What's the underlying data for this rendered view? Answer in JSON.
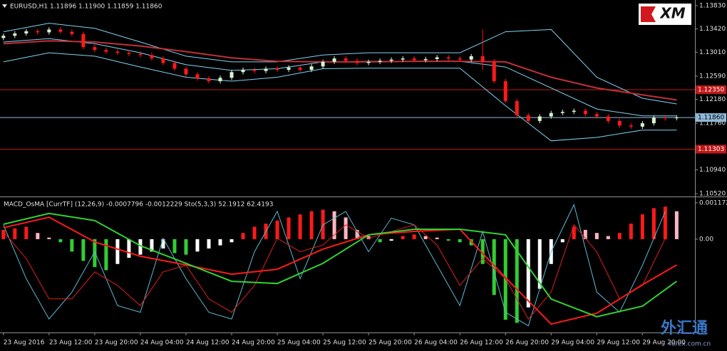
{
  "chart_data": [
    {
      "type": "candlestick",
      "title": "EURUSD,H1  1.11896 1.11900 1.11859 1.11860",
      "x": [
        0,
        2,
        4,
        6,
        8,
        10,
        12,
        14,
        16,
        18,
        20,
        22,
        24,
        26,
        28,
        30,
        32,
        34,
        36,
        38,
        40,
        42,
        44,
        46,
        48,
        50,
        52,
        54,
        56,
        58,
        60,
        62,
        64,
        66,
        68,
        70,
        72,
        74,
        76,
        78,
        80,
        82,
        84,
        86,
        88,
        90,
        92,
        94,
        96,
        98,
        100,
        102,
        104,
        106,
        108,
        110,
        112,
        114,
        116,
        118
      ],
      "open": [
        1.1326,
        1.133,
        1.1334,
        1.1338,
        1.1336,
        1.1341,
        1.1337,
        1.1333,
        1.131,
        1.1305,
        1.1302,
        1.13,
        1.1298,
        1.1296,
        1.129,
        1.1282,
        1.1272,
        1.1262,
        1.1255,
        1.125,
        1.1256,
        1.1266,
        1.127,
        1.1268,
        1.1272,
        1.127,
        1.1274,
        1.127,
        1.1276,
        1.1284,
        1.129,
        1.1286,
        1.1282,
        1.1284,
        1.1286,
        1.1288,
        1.129,
        1.1287,
        1.1289,
        1.1292,
        1.129,
        1.1288,
        1.1294,
        1.1285,
        1.125,
        1.1215,
        1.119,
        1.118,
        1.1188,
        1.1194,
        1.1196,
        1.1198,
        1.1192,
        1.1188,
        1.118,
        1.1172,
        1.117,
        1.1176,
        1.1186,
        1.1185
      ],
      "high": [
        1.1334,
        1.1338,
        1.1342,
        1.1342,
        1.1345,
        1.1345,
        1.1341,
        1.1337,
        1.1314,
        1.1309,
        1.1306,
        1.1304,
        1.1302,
        1.13,
        1.1294,
        1.1286,
        1.1276,
        1.1266,
        1.1259,
        1.126,
        1.127,
        1.1274,
        1.1274,
        1.1276,
        1.1276,
        1.1278,
        1.1278,
        1.128,
        1.1288,
        1.1294,
        1.1294,
        1.129,
        1.1288,
        1.129,
        1.1292,
        1.1294,
        1.1294,
        1.1293,
        1.1296,
        1.1296,
        1.1294,
        1.1298,
        1.1341,
        1.1289,
        1.1254,
        1.1219,
        1.1194,
        1.1192,
        1.1198,
        1.12,
        1.1202,
        1.1202,
        1.1196,
        1.1192,
        1.1184,
        1.1176,
        1.118,
        1.119,
        1.119,
        1.119
      ],
      "low": [
        1.1322,
        1.1326,
        1.133,
        1.1332,
        1.1332,
        1.1333,
        1.1329,
        1.1306,
        1.1301,
        1.1298,
        1.1296,
        1.1294,
        1.1292,
        1.1286,
        1.1278,
        1.1268,
        1.1258,
        1.1251,
        1.1246,
        1.1246,
        1.1252,
        1.1262,
        1.1264,
        1.1264,
        1.1266,
        1.1266,
        1.1266,
        1.1266,
        1.1272,
        1.128,
        1.1282,
        1.1278,
        1.1278,
        1.128,
        1.1282,
        1.1284,
        1.1283,
        1.1283,
        1.1285,
        1.1286,
        1.1284,
        1.1284,
        1.127,
        1.1246,
        1.1211,
        1.1186,
        1.1176,
        1.1176,
        1.1184,
        1.119,
        1.1192,
        1.1188,
        1.1184,
        1.1176,
        1.1168,
        1.1166,
        1.1166,
        1.1172,
        1.1181,
        1.1181
      ],
      "close": [
        1.133,
        1.1334,
        1.1338,
        1.1336,
        1.1341,
        1.1337,
        1.1333,
        1.131,
        1.1305,
        1.1302,
        1.13,
        1.1298,
        1.1296,
        1.129,
        1.1282,
        1.1272,
        1.1262,
        1.1255,
        1.125,
        1.1256,
        1.1266,
        1.127,
        1.1268,
        1.1272,
        1.127,
        1.1274,
        1.127,
        1.1276,
        1.1284,
        1.129,
        1.1286,
        1.1282,
        1.1284,
        1.1286,
        1.1288,
        1.129,
        1.1287,
        1.1289,
        1.1292,
        1.129,
        1.1288,
        1.1294,
        1.1285,
        1.125,
        1.1215,
        1.119,
        1.118,
        1.1188,
        1.1194,
        1.1196,
        1.1198,
        1.1192,
        1.1188,
        1.118,
        1.1172,
        1.117,
        1.1176,
        1.1186,
        1.1185,
        1.1186
      ],
      "up_color": "#d8f5d0",
      "down_color": "#ff1a1a",
      "line_x": [
        0,
        8,
        16,
        24,
        32,
        40,
        48,
        56,
        64,
        72,
        80,
        88,
        96,
        104,
        112,
        118
      ],
      "lines": [
        {
          "color": "#7fd4f0",
          "values": [
            1.1337,
            1.1352,
            1.1343,
            1.1319,
            1.1294,
            1.1284,
            1.1284,
            1.1296,
            1.13,
            1.13,
            1.13,
            1.1337,
            1.1341,
            1.1257,
            1.122,
            1.121
          ]
        },
        {
          "color": "#7fd4f0",
          "values": [
            1.1319,
            1.1325,
            1.1316,
            1.13,
            1.1279,
            1.1269,
            1.1272,
            1.1284,
            1.1285,
            1.1285,
            1.1285,
            1.1275,
            1.1238,
            1.1201,
            1.1189,
            1.1189
          ]
        },
        {
          "color": "#7fd4f0",
          "values": [
            1.1284,
            1.13,
            1.1294,
            1.1275,
            1.1257,
            1.125,
            1.1257,
            1.1272,
            1.1273,
            1.1273,
            1.1273,
            1.1207,
            1.1145,
            1.1151,
            1.1164,
            1.1164
          ]
        },
        {
          "color": "#c0303a",
          "values": [
            1.1316,
            1.1321,
            1.1319,
            1.1312,
            1.1302,
            1.1291,
            1.1285,
            1.1284,
            1.1284,
            1.1285,
            1.1285,
            1.1284,
            1.1257,
            1.1238,
            1.1226,
            1.1217
          ]
        }
      ],
      "levels": [
        {
          "value": 1.1235,
          "label": "1.12350",
          "color": "#c01818",
          "text_color": "#ffffff"
        },
        {
          "value": 1.1186,
          "label": "1.11860",
          "color": "#8fb8d8",
          "text_color": "#000000"
        },
        {
          "value": 1.11303,
          "label": "1.11303",
          "color": "#c01818",
          "text_color": "#ffffff"
        }
      ],
      "xlim": [
        -0.6,
        121.2
      ],
      "ylim": [
        1.10483,
        1.13929
      ],
      "yticks": [
        {
          "value": 1.1383,
          "label": "1.13830"
        },
        {
          "value": 1.1342,
          "label": "1.13420"
        },
        {
          "value": 1.1301,
          "label": "1.13010"
        },
        {
          "value": 1.1259,
          "label": "1.12590"
        },
        {
          "value": 1.1218,
          "label": "1.12180"
        },
        {
          "value": 1.1176,
          "label": "1.11760"
        },
        {
          "value": 1.1094,
          "label": "1.10940"
        },
        {
          "value": 1.1052,
          "label": "1.10520"
        }
      ]
    },
    {
      "type": "macd",
      "title": "MACD_OsMA [CurrTF] (12,26,9) -0.0007796 -0.0012229  Sto(5,3,3) 52.1912 62.4193",
      "x": [
        0,
        2,
        4,
        6,
        8,
        10,
        12,
        14,
        16,
        18,
        20,
        22,
        24,
        26,
        28,
        30,
        32,
        34,
        36,
        38,
        40,
        42,
        44,
        46,
        48,
        50,
        52,
        54,
        56,
        58,
        60,
        62,
        64,
        66,
        68,
        70,
        72,
        74,
        76,
        78,
        80,
        82,
        84,
        86,
        88,
        90,
        92,
        94,
        96,
        98,
        100,
        102,
        104,
        106,
        108,
        110,
        112,
        114,
        116,
        118
      ],
      "values": [
        0.0003,
        0.00035,
        0.0004,
        0.0002,
        5e-05,
        -0.0001,
        -0.0004,
        -0.0007,
        -0.0009,
        -0.001,
        -0.0008,
        -0.0006,
        -0.0005,
        -0.0004,
        -0.0003,
        -0.00045,
        -0.0005,
        -0.0004,
        -0.0003,
        -0.0002,
        -0.0001,
        0.0002,
        0.0004,
        0.0005,
        0.0006,
        0.0007,
        0.0008,
        0.0009,
        0.00095,
        0.0009,
        0.0007,
        0.0003,
        0.0001,
        -0.0001,
        -5e-05,
        0.0001,
        0.00015,
        0.0001,
        5e-05,
        -5e-05,
        -0.0001,
        -0.0002,
        -0.0008,
        -0.0018,
        -0.0026,
        -0.0027,
        -0.0022,
        -0.0016,
        -0.0008,
        -0.0001,
        0.0004,
        0.0003,
        0.0002,
        0.0001,
        0.0002,
        0.0005,
        0.0008,
        0.001,
        0.00105,
        0.0009
      ],
      "bar_colors": [
        "#ff1a1a",
        "#ffb6c1",
        "#32cd32",
        "#ffffff"
      ],
      "line_x": [
        0,
        8,
        16,
        24,
        32,
        40,
        48,
        56,
        64,
        72,
        80,
        88,
        96,
        104,
        112,
        118
      ],
      "lines": [
        {
          "color": "#ff1a1a",
          "values": [
            0.00037,
            0.00071,
            -9e-05,
            -0.00055,
            -0.00083,
            -0.00113,
            -0.00097,
            -0.00032,
            0.00014,
            0.00025,
            0.00032,
            -0.00124,
            -0.00274,
            -0.00239,
            -0.00147,
            -0.00083
          ]
        },
        {
          "color": "#32d232",
          "values": [
            0.00048,
            0.00083,
            0.0006,
            -0.00021,
            -0.00078,
            -0.00136,
            -0.00143,
            -0.00078,
            0.00014,
            0.00032,
            0.00032,
            0.00014,
            -0.00193,
            -0.0025,
            -0.00216,
            -0.00136
          ]
        }
      ],
      "stoch_x": [
        0,
        4,
        8,
        12,
        16,
        20,
        24,
        28,
        32,
        36,
        40,
        44,
        48,
        52,
        56,
        60,
        64,
        68,
        72,
        76,
        80,
        84,
        88,
        92,
        96,
        100,
        104,
        108,
        112,
        116
      ],
      "stoch": [
        {
          "color": "#5fb8d0",
          "values": [
            80,
            40,
            10,
            30,
            60,
            20,
            15,
            70,
            40,
            15,
            10,
            60,
            90,
            40,
            80,
            90,
            60,
            85,
            80,
            50,
            20,
            75,
            15,
            5,
            60,
            95,
            30,
            15,
            50,
            90
          ]
        },
        {
          "color": "#e02020",
          "values": [
            75,
            55,
            25,
            25,
            45,
            35,
            20,
            45,
            50,
            25,
            15,
            35,
            70,
            60,
            65,
            80,
            70,
            75,
            80,
            65,
            35,
            55,
            40,
            10,
            30,
            80,
            60,
            25,
            35,
            70
          ]
        }
      ],
      "xlim": [
        -0.6,
        121.2
      ],
      "ylim": [
        -0.00301,
        0.00133
      ],
      "y2lim": [
        0,
        100
      ],
      "yticks": [
        {
          "value": 0.001172,
          "label": "0.001172"
        },
        {
          "value": 0,
          "label": "0.00"
        }
      ],
      "xticks": [
        {
          "value": 0,
          "label": "23 Aug 2016"
        },
        {
          "value": 8,
          "label": "23 Aug 12:00"
        },
        {
          "value": 16,
          "label": "23 Aug 20:00"
        },
        {
          "value": 24,
          "label": "24 Aug 04:00"
        },
        {
          "value": 32,
          "label": "24 Aug 12:00"
        },
        {
          "value": 40,
          "label": "24 Aug 20:00"
        },
        {
          "value": 48,
          "label": "25 Aug 04:00"
        },
        {
          "value": 56,
          "label": "25 Aug 12:00"
        },
        {
          "value": 64,
          "label": "25 Aug 20:00"
        },
        {
          "value": 72,
          "label": "26 Aug 04:00"
        },
        {
          "value": 80,
          "label": "26 Aug 12:00"
        },
        {
          "value": 88,
          "label": "26 Aug 20:00"
        },
        {
          "value": 96,
          "label": "29 Aug 04:00"
        },
        {
          "value": 104,
          "label": "29 Aug 12:00"
        },
        {
          "value": 112,
          "label": "29 Aug 20:00"
        }
      ]
    }
  ],
  "logo": "XM",
  "watermark": "外汇通",
  "watermark_url": "forex.com.cn"
}
